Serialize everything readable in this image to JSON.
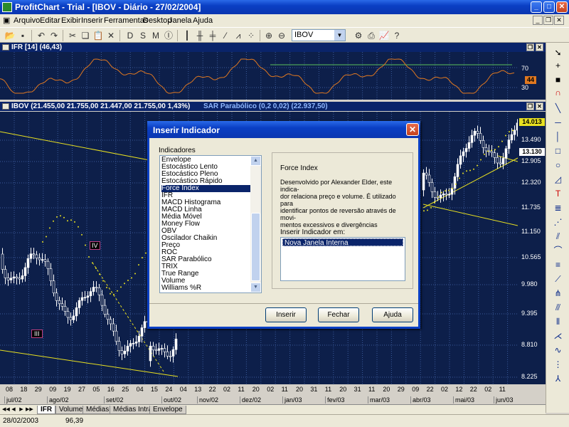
{
  "window": {
    "title": "ProfitChart - Trial - [IBOV - Diário - 27/02/2004]"
  },
  "menu": {
    "items": [
      "Arquivo",
      "Editar",
      "Exibir",
      "Inserir",
      "Ferramentas",
      "Desktop",
      "Janela",
      "Ajuda"
    ]
  },
  "toolbar": {
    "symbol": "IBOV"
  },
  "ifr_pane": {
    "header": "IFR [14] (46,43)",
    "y_labels": [
      "70",
      "30"
    ],
    "current": "44"
  },
  "main_pane": {
    "header_price": "IBOV (21.455,00  21.755,00  21.447,00  21.755,00  1,43%)",
    "header_sar": "SAR Parabólico (0,2 0,02) (22.937,50)",
    "y_labels": [
      "13.490",
      "12.905",
      "12.320",
      "11.735",
      "11.150",
      "10.565",
      "9.980",
      "9.395",
      "8.810",
      "8.225"
    ],
    "high_label": "14.013",
    "last_label": "13.130",
    "wave_labels": [
      "IV",
      "III"
    ]
  },
  "x_axis": {
    "days": [
      "08",
      "18",
      "29",
      "09",
      "19",
      "27",
      "05",
      "16",
      "25",
      "04",
      "15",
      "24",
      "04",
      "13",
      "22",
      "02",
      "11",
      "20",
      "02",
      "11",
      "20",
      "31",
      "11",
      "20",
      "31",
      "11",
      "20",
      "29",
      "09",
      "22",
      "02",
      "12",
      "22",
      "02",
      "11"
    ],
    "months": [
      "jul/02",
      "ago/02",
      "set/02",
      "out/02",
      "nov/02",
      "dez/02",
      "jan/03",
      "fev/03",
      "mar/03",
      "abr/03",
      "mai/03",
      "jun/03"
    ]
  },
  "tabs": [
    "IFR",
    "Volume",
    "Médias",
    "Médias Intra",
    "Envelope"
  ],
  "status": {
    "date": "28/02/2003",
    "value": "96,39"
  },
  "dialog": {
    "title": "Inserir Indicador",
    "list_label": "Indicadores",
    "indicators": [
      "Envelope",
      "Estocástico Lento",
      "Estocástico Pleno",
      "Estocástico Rápido",
      "Force Index",
      "IFR",
      "MACD Histograma",
      "MACD Linha",
      "Média Móvel",
      "Money Flow",
      "OBV",
      "Oscilador Chaikin",
      "Preço",
      "ROC",
      "SAR Parabólico",
      "TRIX",
      "True Range",
      "Volume",
      "Williams %R"
    ],
    "selected_index": 4,
    "desc_title": "Force Index",
    "desc_lines": [
      "Desenvolvido por Alexander Elder, este indica-",
      "dor relaciona preço e volume. É utilizado para",
      "identificar pontos de reversão através de movi-",
      "mentos excessivos e divergências"
    ],
    "insert_label": "Inserir Indicador em:",
    "insert_option": "Nova Janela Interna",
    "buttons": {
      "insert": "Inserir",
      "close": "Fechar",
      "help": "Ajuda"
    }
  },
  "colors": {
    "pane_bg": "#0d1f4a",
    "ifr_line": "#e07820",
    "trend": "#e8e020",
    "grid": "#3a5a9a",
    "selected": "#0a246a"
  }
}
